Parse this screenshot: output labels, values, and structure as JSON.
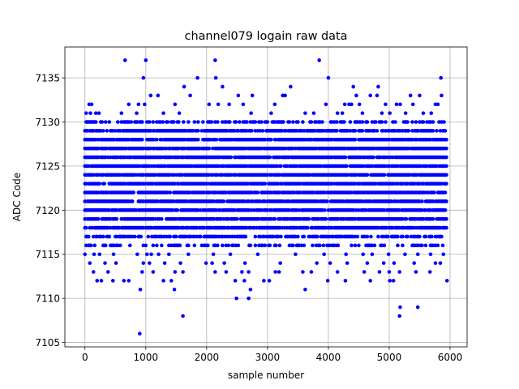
{
  "chart_data": {
    "type": "scatter",
    "title": "channel079 logain raw data",
    "xlabel": "sample number",
    "ylabel": "ADC Code",
    "xlim": [
      -330,
      6280
    ],
    "ylim": [
      7104.5,
      7138.5
    ],
    "xticks": [
      0,
      1000,
      2000,
      3000,
      4000,
      5000,
      6000
    ],
    "yticks": [
      7105,
      7110,
      7115,
      7120,
      7125,
      7130,
      7135
    ],
    "grid": true,
    "marker_color": "#0000ff",
    "band": {
      "x_start": 0,
      "x_end": 5940,
      "x_step": 20,
      "y_min": 7116,
      "y_max": 7130
    },
    "outliers": [
      [
        660,
        7137
      ],
      [
        1000,
        7137
      ],
      [
        2140,
        7137
      ],
      [
        3850,
        7137
      ],
      [
        960,
        7135
      ],
      [
        1850,
        7135
      ],
      [
        2150,
        7135
      ],
      [
        4000,
        7135
      ],
      [
        5850,
        7135
      ],
      [
        1630,
        7134
      ],
      [
        2260,
        7134
      ],
      [
        3380,
        7134
      ],
      [
        4410,
        7134
      ],
      [
        4820,
        7134
      ],
      [
        1080,
        7133
      ],
      [
        1200,
        7133
      ],
      [
        1730,
        7133
      ],
      [
        2520,
        7133
      ],
      [
        2750,
        7133
      ],
      [
        3250,
        7133
      ],
      [
        3290,
        7133
      ],
      [
        4460,
        7133
      ],
      [
        4690,
        7133
      ],
      [
        4800,
        7133
      ],
      [
        5350,
        7133
      ],
      [
        5500,
        7133
      ],
      [
        5860,
        7133
      ],
      [
        70,
        7132
      ],
      [
        110,
        7132
      ],
      [
        720,
        7132
      ],
      [
        880,
        7132
      ],
      [
        980,
        7132
      ],
      [
        1480,
        7132
      ],
      [
        2040,
        7132
      ],
      [
        2190,
        7132
      ],
      [
        2370,
        7132
      ],
      [
        2600,
        7132
      ],
      [
        3120,
        7132
      ],
      [
        3960,
        7132
      ],
      [
        4270,
        7132
      ],
      [
        4340,
        7132
      ],
      [
        4380,
        7132
      ],
      [
        4510,
        7132
      ],
      [
        4940,
        7132
      ],
      [
        5120,
        7132
      ],
      [
        5180,
        7132
      ],
      [
        5390,
        7132
      ],
      [
        5760,
        7132
      ],
      [
        5800,
        7132
      ],
      [
        20,
        7131
      ],
      [
        90,
        7131
      ],
      [
        180,
        7131
      ],
      [
        230,
        7131
      ],
      [
        600,
        7131
      ],
      [
        850,
        7131
      ],
      [
        1290,
        7131
      ],
      [
        1550,
        7131
      ],
      [
        2730,
        7131
      ],
      [
        3060,
        7131
      ],
      [
        3620,
        7131
      ],
      [
        3760,
        7131
      ],
      [
        4150,
        7131
      ],
      [
        4230,
        7131
      ],
      [
        4560,
        7131
      ],
      [
        4880,
        7131
      ],
      [
        5010,
        7131
      ],
      [
        5270,
        7131
      ],
      [
        5560,
        7131
      ],
      [
        5690,
        7131
      ],
      [
        0,
        7115
      ],
      [
        150,
        7115
      ],
      [
        240,
        7115
      ],
      [
        470,
        7115
      ],
      [
        860,
        7115
      ],
      [
        1020,
        7115
      ],
      [
        1090,
        7115
      ],
      [
        1210,
        7115
      ],
      [
        1380,
        7115
      ],
      [
        1700,
        7115
      ],
      [
        2110,
        7115
      ],
      [
        2390,
        7115
      ],
      [
        2840,
        7115
      ],
      [
        3460,
        7115
      ],
      [
        3930,
        7115
      ],
      [
        4290,
        7115
      ],
      [
        4570,
        7115
      ],
      [
        4720,
        7115
      ],
      [
        4990,
        7115
      ],
      [
        5260,
        7115
      ],
      [
        5470,
        7115
      ],
      [
        5680,
        7115
      ],
      [
        5890,
        7115
      ],
      [
        80,
        7114
      ],
      [
        330,
        7114
      ],
      [
        510,
        7114
      ],
      [
        960,
        7114
      ],
      [
        1060,
        7114
      ],
      [
        1310,
        7114
      ],
      [
        1570,
        7114
      ],
      [
        1990,
        7114
      ],
      [
        2090,
        7114
      ],
      [
        2290,
        7114
      ],
      [
        2630,
        7114
      ],
      [
        3210,
        7114
      ],
      [
        3810,
        7114
      ],
      [
        4030,
        7114
      ],
      [
        4310,
        7114
      ],
      [
        4640,
        7114
      ],
      [
        4910,
        7114
      ],
      [
        5080,
        7114
      ],
      [
        5410,
        7114
      ],
      [
        5760,
        7114
      ],
      [
        5840,
        7114
      ],
      [
        140,
        7113
      ],
      [
        380,
        7113
      ],
      [
        940,
        7113
      ],
      [
        1120,
        7113
      ],
      [
        1480,
        7113
      ],
      [
        1610,
        7113
      ],
      [
        2140,
        7113
      ],
      [
        2320,
        7113
      ],
      [
        2580,
        7113
      ],
      [
        2690,
        7113
      ],
      [
        3130,
        7113
      ],
      [
        3190,
        7113
      ],
      [
        3580,
        7113
      ],
      [
        3720,
        7113
      ],
      [
        4150,
        7113
      ],
      [
        4590,
        7113
      ],
      [
        4840,
        7113
      ],
      [
        5000,
        7113
      ],
      [
        5170,
        7113
      ],
      [
        5440,
        7113
      ],
      [
        5670,
        7113
      ],
      [
        200,
        7112
      ],
      [
        270,
        7112
      ],
      [
        460,
        7112
      ],
      [
        640,
        7112
      ],
      [
        720,
        7112
      ],
      [
        1290,
        7112
      ],
      [
        1420,
        7112
      ],
      [
        2470,
        7112
      ],
      [
        2620,
        7112
      ],
      [
        2940,
        7112
      ],
      [
        3030,
        7112
      ],
      [
        3990,
        7112
      ],
      [
        4280,
        7112
      ],
      [
        4690,
        7112
      ],
      [
        5010,
        7112
      ],
      [
        5070,
        7112
      ],
      [
        5950,
        7112
      ],
      [
        910,
        7111
      ],
      [
        1470,
        7111
      ],
      [
        2720,
        7111
      ],
      [
        3620,
        7111
      ],
      [
        2490,
        7110
      ],
      [
        2690,
        7110
      ],
      [
        5180,
        7109
      ],
      [
        5470,
        7109
      ],
      [
        1610,
        7108
      ],
      [
        5170,
        7108
      ],
      [
        900,
        7106
      ]
    ]
  }
}
